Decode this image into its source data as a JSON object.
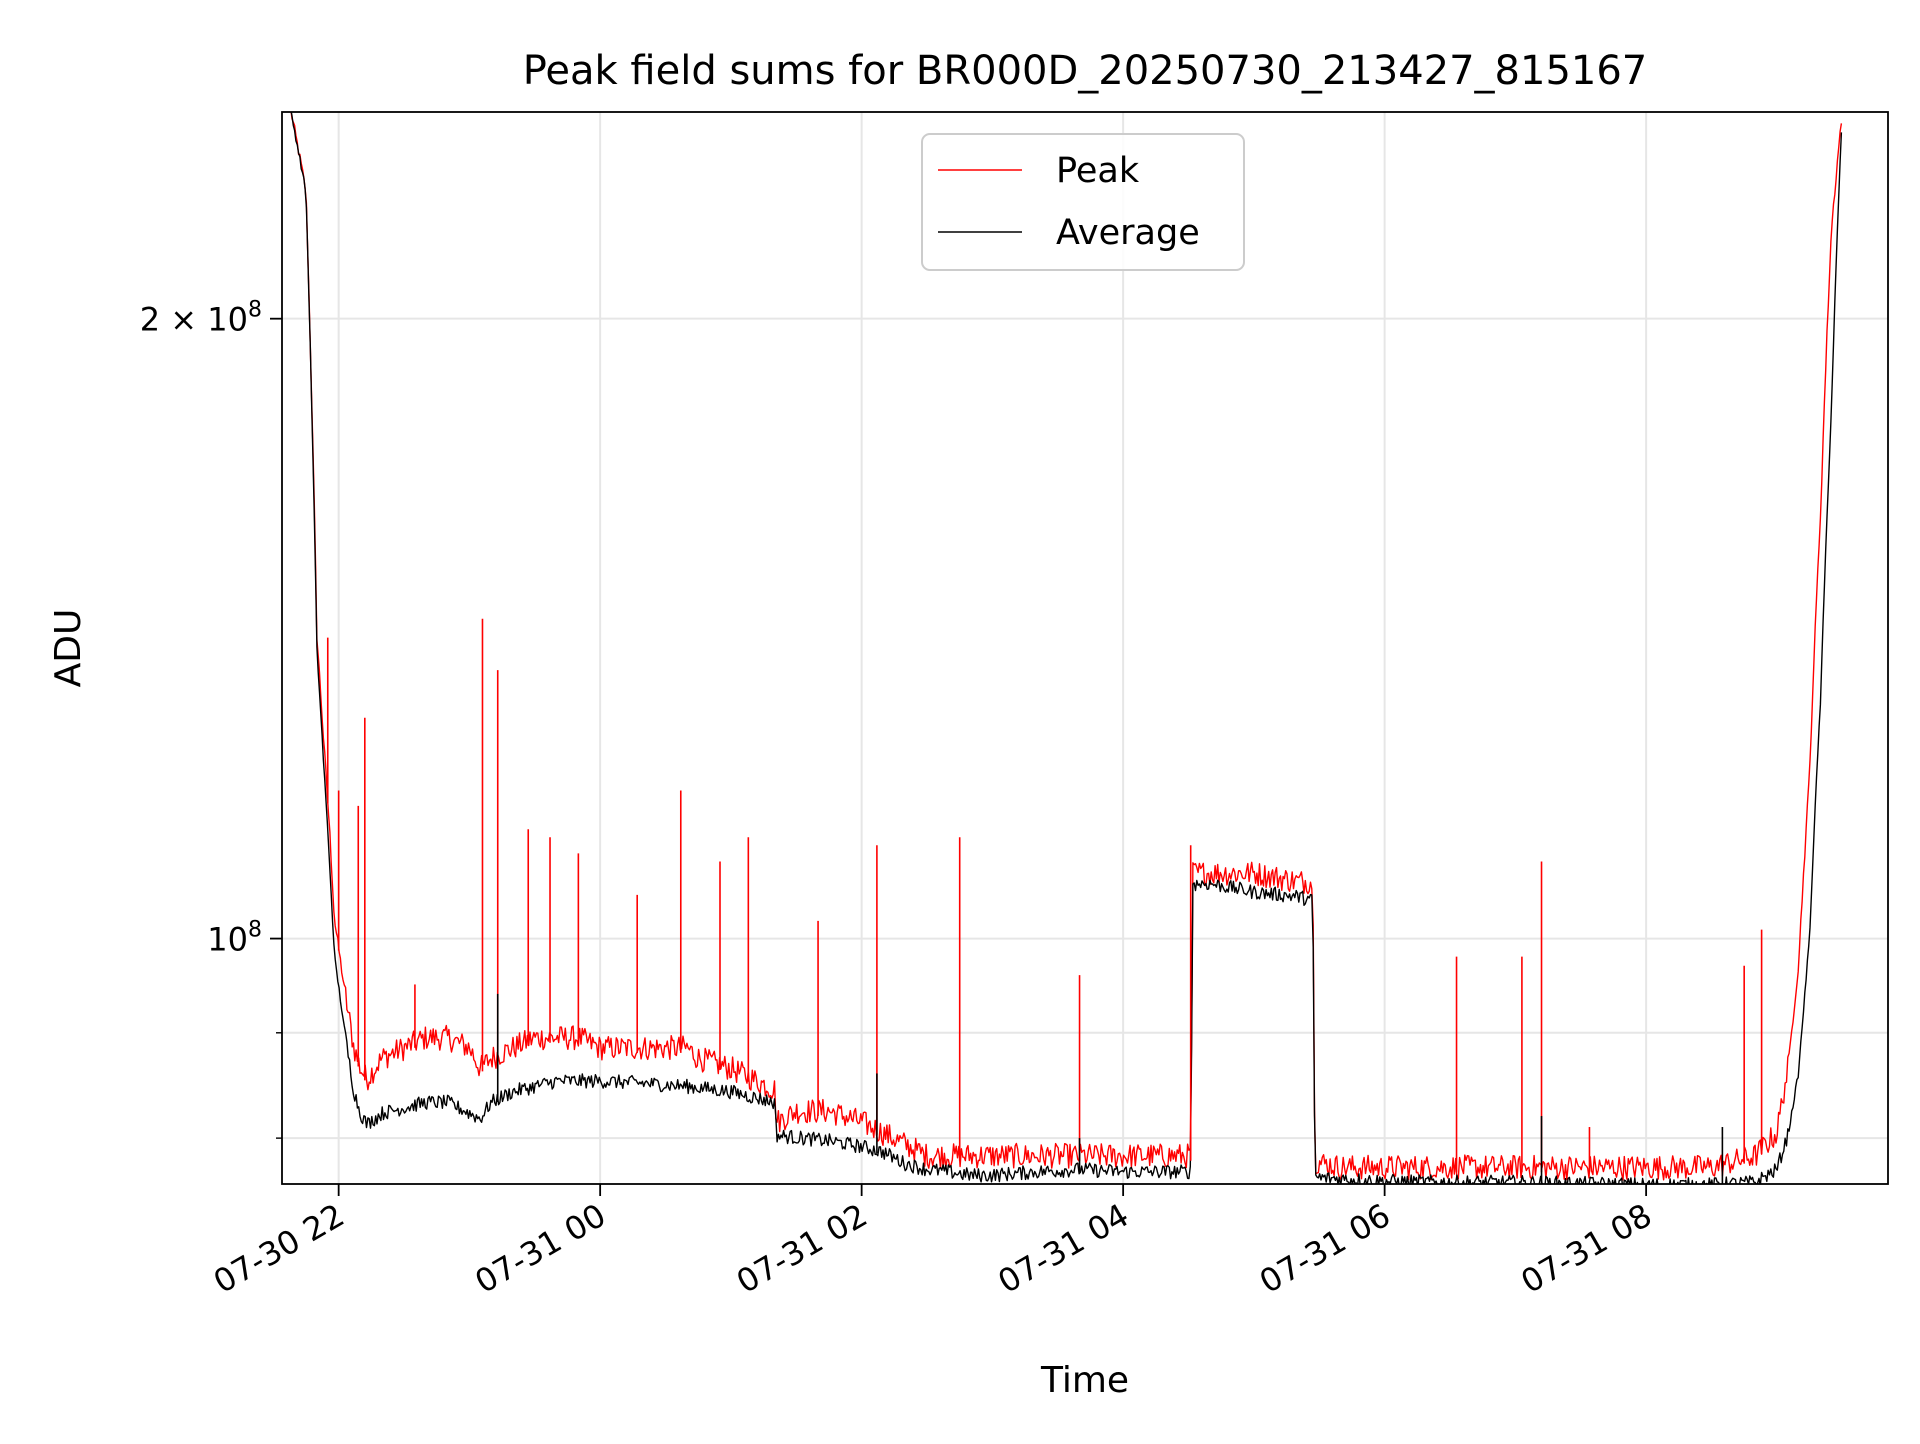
{
  "chart_data": {
    "type": "line",
    "title": "Peak field sums for BR000D_20250730_213427_815167",
    "xlabel": "Time",
    "ylabel": "ADU",
    "y_scale": "log",
    "ylim": [
      76000000,
      252000000
    ],
    "xlim": [
      "2025-07-30 21:34",
      "2025-07-31 09:51"
    ],
    "x_ticks": [
      {
        "value": "2025-07-30 22:00",
        "label": "07-30 22"
      },
      {
        "value": "2025-07-31 00:00",
        "label": "07-31 00"
      },
      {
        "value": "2025-07-31 02:00",
        "label": "07-31 02"
      },
      {
        "value": "2025-07-31 04:00",
        "label": "07-31 04"
      },
      {
        "value": "2025-07-31 06:00",
        "label": "07-31 06"
      },
      {
        "value": "2025-07-31 08:00",
        "label": "07-31 08"
      }
    ],
    "y_ticks": [
      {
        "value": 100000000,
        "label_base": "10",
        "label_exp": "8",
        "label_coef": ""
      },
      {
        "value": 200000000,
        "label_base": "10",
        "label_exp": "8",
        "label_coef": "2 × "
      }
    ],
    "y_minor_ticks": [
      80000000,
      90000000
    ],
    "grid": true,
    "legend_position": "upper center",
    "series": [
      {
        "name": "Peak",
        "color": "#ff0000",
        "x": [
          "2025-07-30 21:38",
          "2025-07-30 21:45",
          "2025-07-30 21:50",
          "2025-07-30 21:53",
          "2025-07-30 21:56",
          "2025-07-30 21:58",
          "2025-07-30 22:01",
          "2025-07-30 22:04",
          "2025-07-30 22:07",
          "2025-07-30 22:10",
          "2025-07-30 22:13",
          "2025-07-30 22:20",
          "2025-07-30 22:30",
          "2025-07-30 22:40",
          "2025-07-30 22:50",
          "2025-07-30 23:00",
          "2025-07-30 23:05",
          "2025-07-30 23:10",
          "2025-07-30 23:20",
          "2025-07-30 23:30",
          "2025-07-30 23:40",
          "2025-07-30 23:45",
          "2025-07-30 23:50",
          "2025-07-31 00:00",
          "2025-07-31 00:20",
          "2025-07-31 00:40",
          "2025-07-31 00:45",
          "2025-07-31 01:00",
          "2025-07-31 01:10",
          "2025-07-31 01:20",
          "2025-07-31 01:21",
          "2025-07-31 01:30",
          "2025-07-31 01:45",
          "2025-07-31 02:00",
          "2025-07-31 02:10",
          "2025-07-31 02:20",
          "2025-07-31 02:30",
          "2025-07-31 02:40",
          "2025-07-31 02:50",
          "2025-07-31 03:00",
          "2025-07-31 03:20",
          "2025-07-31 03:40",
          "2025-07-31 04:00",
          "2025-07-31 04:15",
          "2025-07-31 04:31",
          "2025-07-31 04:32",
          "2025-07-31 04:40",
          "2025-07-31 05:00",
          "2025-07-31 05:20",
          "2025-07-31 05:27",
          "2025-07-31 05:28",
          "2025-07-31 05:40",
          "2025-07-31 06:00",
          "2025-07-31 06:30",
          "2025-07-31 07:00",
          "2025-07-31 07:30",
          "2025-07-31 08:00",
          "2025-07-31 08:30",
          "2025-07-31 08:50",
          "2025-07-31 09:00",
          "2025-07-31 09:05",
          "2025-07-31 09:10",
          "2025-07-31 09:15",
          "2025-07-31 09:20",
          "2025-07-31 09:25",
          "2025-07-31 09:30"
        ],
        "y": [
          252000000,
          230000000,
          140000000,
          125000000,
          112000000,
          102000000,
          97000000,
          92000000,
          88000000,
          86000000,
          85000000,
          87000000,
          88000000,
          89000000,
          89000000,
          88000000,
          86000000,
          87000000,
          88000000,
          89000000,
          89000000,
          89000000,
          89000000,
          88000000,
          88000000,
          88000000,
          87000000,
          86000000,
          85000000,
          84000000,
          81000000,
          82000000,
          82000000,
          81000000,
          80000000,
          79000000,
          78000000,
          78000000,
          78000000,
          78000000,
          78000000,
          78000000,
          78000000,
          78000000,
          78000000,
          107000000,
          107000000,
          107000000,
          106000000,
          106000000,
          77500000,
          77000000,
          77000000,
          77000000,
          77000000,
          77000000,
          77000000,
          77000000,
          78000000,
          80000000,
          86000000,
          97000000,
          120000000,
          160000000,
          220000000,
          252000000
        ]
      },
      {
        "name": "Average",
        "color": "#000000",
        "x": [
          "2025-07-30 21:38",
          "2025-07-30 21:45",
          "2025-07-30 21:50",
          "2025-07-30 21:53",
          "2025-07-30 21:56",
          "2025-07-30 21:58",
          "2025-07-30 22:01",
          "2025-07-30 22:04",
          "2025-07-30 22:07",
          "2025-07-30 22:10",
          "2025-07-30 22:13",
          "2025-07-30 22:20",
          "2025-07-30 22:30",
          "2025-07-30 22:40",
          "2025-07-30 22:50",
          "2025-07-30 23:00",
          "2025-07-30 23:05",
          "2025-07-30 23:10",
          "2025-07-30 23:20",
          "2025-07-30 23:30",
          "2025-07-30 23:40",
          "2025-07-30 23:50",
          "2025-07-31 00:00",
          "2025-07-31 00:20",
          "2025-07-31 00:40",
          "2025-07-31 01:00",
          "2025-07-31 01:10",
          "2025-07-31 01:20",
          "2025-07-31 01:21",
          "2025-07-31 01:30",
          "2025-07-31 01:45",
          "2025-07-31 02:00",
          "2025-07-31 02:10",
          "2025-07-31 02:20",
          "2025-07-31 02:30",
          "2025-07-31 02:40",
          "2025-07-31 02:50",
          "2025-07-31 03:00",
          "2025-07-31 03:20",
          "2025-07-31 03:40",
          "2025-07-31 04:00",
          "2025-07-31 04:15",
          "2025-07-31 04:31",
          "2025-07-31 04:32",
          "2025-07-31 04:40",
          "2025-07-31 05:00",
          "2025-07-31 05:20",
          "2025-07-31 05:27",
          "2025-07-31 05:28",
          "2025-07-31 05:40",
          "2025-07-31 06:00",
          "2025-07-31 06:30",
          "2025-07-31 07:00",
          "2025-07-31 07:30",
          "2025-07-31 08:00",
          "2025-07-31 08:30",
          "2025-07-31 08:50",
          "2025-07-31 09:00",
          "2025-07-31 09:05",
          "2025-07-31 09:10",
          "2025-07-31 09:15",
          "2025-07-31 09:20",
          "2025-07-31 09:25",
          "2025-07-31 09:30"
        ],
        "y": [
          252000000,
          230000000,
          138000000,
          122000000,
          108000000,
          98000000,
          93000000,
          88000000,
          84000000,
          82000000,
          81000000,
          82000000,
          82500000,
          83000000,
          83000000,
          82000000,
          81500000,
          83000000,
          84000000,
          84500000,
          85000000,
          85000000,
          85000000,
          84800000,
          84500000,
          84000000,
          83500000,
          83000000,
          80000000,
          79800000,
          79500000,
          79000000,
          78500000,
          77500000,
          77000000,
          76800000,
          76500000,
          76500000,
          76800000,
          77000000,
          76800000,
          76800000,
          76800000,
          106000000,
          106000000,
          105000000,
          104500000,
          104000000,
          76300000,
          76200000,
          76000000,
          75900000,
          75900000,
          75800000,
          75700000,
          75700000,
          75900000,
          77000000,
          80000000,
          86000000,
          100000000,
          130000000,
          180000000,
          252000000
        ]
      }
    ],
    "peak_spikes": {
      "x": [
        "2025-07-30 21:55",
        "2025-07-30 22:00",
        "2025-07-30 22:09",
        "2025-07-30 22:12",
        "2025-07-30 22:35",
        "2025-07-30 23:06",
        "2025-07-30 23:13",
        "2025-07-30 23:27",
        "2025-07-30 23:37",
        "2025-07-30 23:50",
        "2025-07-31 00:17",
        "2025-07-31 00:37",
        "2025-07-31 00:55",
        "2025-07-31 01:08",
        "2025-07-31 01:40",
        "2025-07-31 02:07",
        "2025-07-31 02:45",
        "2025-07-31 03:40",
        "2025-07-31 04:31",
        "2025-07-31 06:33",
        "2025-07-31 07:03",
        "2025-07-31 07:12",
        "2025-07-31 07:34",
        "2025-07-31 08:45",
        "2025-07-31 08:53"
      ],
      "y": [
        140000000,
        118000000,
        116000000,
        128000000,
        95000000,
        143000000,
        135000000,
        113000000,
        112000000,
        110000000,
        105000000,
        118000000,
        109000000,
        112000000,
        102000000,
        111000000,
        112000000,
        96000000,
        111000000,
        98000000,
        98000000,
        109000000,
        81000000,
        97000000,
        101000000
      ]
    },
    "average_spikes": {
      "x": [
        "2025-07-30 23:13",
        "2025-07-31 02:07",
        "2025-07-31 03:40",
        "2025-07-31 07:12",
        "2025-07-31 08:35"
      ],
      "y": [
        94000000,
        86000000,
        80000000,
        82000000,
        81000000
      ]
    }
  }
}
